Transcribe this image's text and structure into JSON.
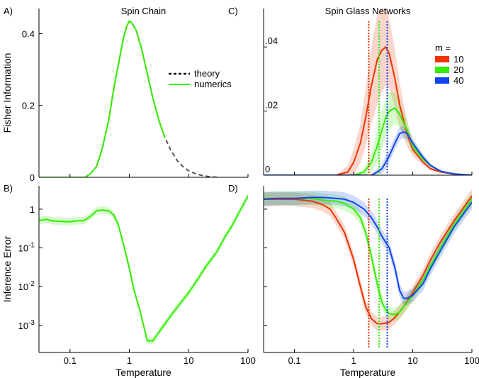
{
  "chart_data": [
    {
      "panel": "A)",
      "type": "line",
      "title": "Spin Chain",
      "ylabel": "Fisher Information",
      "xlabel": "",
      "xscale": "log",
      "xlim": [
        0.03,
        100
      ],
      "ylim": [
        0,
        0.47
      ],
      "xticks": [],
      "yticks": [
        {
          "v": 0,
          "label": "0"
        },
        {
          "v": 0.2,
          "label": "0.2"
        },
        {
          "v": 0.4,
          "label": "0.4"
        }
      ],
      "legend": {
        "placement": "center-right",
        "entries": [
          {
            "label": "theory",
            "style": "dashed",
            "color": "#000000"
          },
          {
            "label": "numerics",
            "style": "solid",
            "color": "#33ee00"
          }
        ]
      },
      "series": [
        {
          "name": "theory",
          "color": "#555555",
          "dashed": true,
          "x": [
            0.18,
            0.22,
            0.28,
            0.35,
            0.45,
            0.55,
            0.7,
            0.8,
            0.9,
            1.0,
            1.1,
            1.3,
            1.6,
            2.0,
            2.5,
            3.2,
            4.0,
            5.0,
            6.5,
            8.0,
            10,
            13,
            16,
            20,
            25,
            30
          ],
          "y": [
            0.0,
            0.01,
            0.03,
            0.08,
            0.16,
            0.25,
            0.34,
            0.39,
            0.42,
            0.435,
            0.43,
            0.41,
            0.36,
            0.29,
            0.22,
            0.155,
            0.11,
            0.075,
            0.045,
            0.03,
            0.018,
            0.01,
            0.006,
            0.003,
            0.001,
            0.0
          ]
        },
        {
          "name": "numerics",
          "color": "#33ee00",
          "dashed": false,
          "x": [
            0.03,
            0.18,
            0.22,
            0.28,
            0.35,
            0.45,
            0.55,
            0.7,
            0.8,
            0.9,
            1.0,
            1.1,
            1.3,
            1.6,
            2.0,
            2.5,
            3.2,
            4.0
          ],
          "y": [
            0.0,
            0.0,
            0.01,
            0.03,
            0.08,
            0.16,
            0.25,
            0.34,
            0.39,
            0.42,
            0.435,
            0.43,
            0.41,
            0.36,
            0.29,
            0.22,
            0.155,
            0.11
          ]
        }
      ]
    },
    {
      "panel": "B)",
      "type": "line",
      "title": "",
      "ylabel": "Inference Error",
      "xlabel": "Temperature",
      "xscale": "log",
      "yscale": "log",
      "xlim": [
        0.03,
        100
      ],
      "ylim": [
        0.0002,
        4
      ],
      "xticks": [
        {
          "v": 0.1,
          "label": "0.1"
        },
        {
          "v": 1,
          "label": "1"
        },
        {
          "v": 10,
          "label": "10"
        },
        {
          "v": 100,
          "label": "100"
        }
      ],
      "yticks": [
        {
          "v": 1,
          "label": "1",
          "base": "1",
          "exp": ""
        },
        {
          "v": 0.1,
          "label": "10-1",
          "base": "10",
          "exp": "-1"
        },
        {
          "v": 0.01,
          "label": "10-2",
          "base": "10",
          "exp": "-2"
        },
        {
          "v": 0.001,
          "label": "10-3",
          "base": "10",
          "exp": "-3"
        }
      ],
      "series": [
        {
          "name": "numerics",
          "color": "#33ee00",
          "band": 1.25,
          "x": [
            0.03,
            0.04,
            0.05,
            0.07,
            0.1,
            0.13,
            0.17,
            0.22,
            0.28,
            0.35,
            0.45,
            0.55,
            0.65,
            0.8,
            1.0,
            1.2,
            1.5,
            1.8,
            2.0,
            2.5,
            3.0,
            4.0,
            5.0,
            7.0,
            10,
            14,
            20,
            30,
            40,
            55,
            70,
            100
          ],
          "y": [
            0.5,
            0.55,
            0.5,
            0.48,
            0.47,
            0.5,
            0.5,
            0.65,
            0.9,
            0.95,
            0.9,
            0.7,
            0.4,
            0.12,
            0.03,
            0.008,
            0.0025,
            0.0008,
            0.0004,
            0.0004,
            0.0006,
            0.0011,
            0.0018,
            0.0035,
            0.007,
            0.015,
            0.035,
            0.08,
            0.18,
            0.4,
            0.8,
            2.2
          ]
        }
      ]
    },
    {
      "panel": "C)",
      "type": "line",
      "title": "Spin Glass Networks",
      "ylabel": "",
      "xlabel": "",
      "xscale": "log",
      "xlim": [
        0.03,
        100
      ],
      "ylim": [
        0,
        0.052
      ],
      "xticks": [],
      "yticks": [
        {
          "v": 0,
          "label": "0"
        },
        {
          "v": 0.02,
          "label": ".02"
        },
        {
          "v": 0.04,
          "label": ".04"
        }
      ],
      "legend": {
        "title": "m =",
        "placement": "top-right",
        "entries": [
          {
            "label": "10",
            "color": "#ee3300"
          },
          {
            "label": "20",
            "color": "#33ee00"
          },
          {
            "label": "40",
            "color": "#1144ee"
          }
        ]
      },
      "vlines": [
        {
          "x": 1.8,
          "color": "#ee3300"
        },
        {
          "x": 2.7,
          "color": "#33ee00"
        },
        {
          "x": 3.7,
          "color": "#1144ee"
        }
      ],
      "series": [
        {
          "name": "10",
          "color": "#ee3300",
          "x": [
            0.03,
            0.5,
            0.8,
            1.0,
            1.3,
            1.6,
            2.0,
            2.5,
            3.0,
            3.5,
            4.0,
            5.0,
            6.0,
            8.0,
            10,
            15,
            20,
            30,
            50,
            100
          ],
          "y": [
            0.0,
            0.0,
            0.001,
            0.004,
            0.01,
            0.018,
            0.028,
            0.036,
            0.039,
            0.04,
            0.038,
            0.03,
            0.022,
            0.013,
            0.008,
            0.004,
            0.002,
            0.001,
            0.0003,
            0.0
          ],
          "spread": [
            0,
            0,
            0.002,
            0.004,
            0.006,
            0.009,
            0.012,
            0.014,
            0.013,
            0.012,
            0.011,
            0.009,
            0.007,
            0.004,
            0.002,
            0.001,
            0.0005,
            0.0002,
            0,
            0
          ]
        },
        {
          "name": "20",
          "color": "#33ee00",
          "x": [
            0.03,
            1.0,
            1.5,
            2.0,
            2.5,
            3.0,
            3.5,
            4.0,
            5.0,
            6.0,
            8.0,
            10,
            15,
            20,
            30,
            50,
            100
          ],
          "y": [
            0.0,
            0.0,
            0.001,
            0.004,
            0.009,
            0.014,
            0.018,
            0.02,
            0.021,
            0.019,
            0.014,
            0.009,
            0.005,
            0.003,
            0.0012,
            0.0004,
            0.0
          ],
          "spread": [
            0,
            0,
            0.001,
            0.003,
            0.005,
            0.006,
            0.006,
            0.006,
            0.005,
            0.004,
            0.003,
            0.002,
            0.001,
            0.0005,
            0.0002,
            0,
            0
          ]
        },
        {
          "name": "40",
          "color": "#1144ee",
          "x": [
            0.03,
            2.0,
            2.5,
            3.0,
            3.5,
            4.0,
            5.0,
            6.0,
            7.0,
            8.0,
            10,
            15,
            20,
            30,
            50,
            100
          ],
          "y": [
            0.0,
            0.0,
            0.001,
            0.002,
            0.004,
            0.006,
            0.01,
            0.013,
            0.0135,
            0.013,
            0.01,
            0.0055,
            0.003,
            0.0012,
            0.0004,
            0.0
          ],
          "spread": [
            0,
            0,
            0.001,
            0.0015,
            0.002,
            0.002,
            0.002,
            0.002,
            0.002,
            0.002,
            0.0015,
            0.001,
            0.0005,
            0.0002,
            0,
            0
          ]
        }
      ]
    },
    {
      "panel": "D)",
      "type": "line",
      "title": "",
      "ylabel": "",
      "xlabel": "Temperature",
      "xscale": "log",
      "yscale": "log",
      "xlim": [
        0.03,
        100
      ],
      "ylim": [
        0.0002,
        4
      ],
      "xticks": [
        {
          "v": 0.1,
          "label": "0.1"
        },
        {
          "v": 1,
          "label": "1"
        },
        {
          "v": 10,
          "label": "10"
        },
        {
          "v": 100,
          "label": "100"
        }
      ],
      "yticks": [],
      "vlines": [
        {
          "x": 1.8,
          "color": "#ee3300"
        },
        {
          "x": 2.7,
          "color": "#33ee00"
        },
        {
          "x": 3.7,
          "color": "#1144ee"
        }
      ],
      "series": [
        {
          "name": "10",
          "color": "#ee3300",
          "band": 1.5,
          "x": [
            0.03,
            0.05,
            0.1,
            0.2,
            0.3,
            0.4,
            0.5,
            0.7,
            1.0,
            1.3,
            1.6,
            2.0,
            2.5,
            3.0,
            4.0,
            5.0,
            7.0,
            10,
            15,
            20,
            30,
            50,
            100
          ],
          "y": [
            1.8,
            1.8,
            1.8,
            1.6,
            1.3,
            1.0,
            0.6,
            0.25,
            0.05,
            0.01,
            0.003,
            0.0015,
            0.0011,
            0.0011,
            0.0012,
            0.0016,
            0.003,
            0.007,
            0.02,
            0.05,
            0.15,
            0.5,
            2.2
          ]
        },
        {
          "name": "20",
          "color": "#33ee00",
          "band": 1.5,
          "x": [
            0.03,
            0.05,
            0.1,
            0.2,
            0.3,
            0.5,
            0.7,
            1.0,
            1.3,
            1.6,
            2.0,
            2.5,
            3.0,
            3.5,
            4.0,
            5.0,
            6.0,
            7.0,
            10,
            15,
            20,
            30,
            50,
            100
          ],
          "y": [
            1.9,
            1.9,
            1.9,
            1.9,
            1.7,
            1.6,
            1.4,
            1.0,
            0.6,
            0.25,
            0.06,
            0.012,
            0.004,
            0.0025,
            0.002,
            0.0019,
            0.0022,
            0.003,
            0.006,
            0.015,
            0.035,
            0.11,
            0.4,
            1.8
          ]
        },
        {
          "name": "40",
          "color": "#1144ee",
          "band": 1.5,
          "x": [
            0.03,
            0.05,
            0.1,
            0.2,
            0.3,
            0.5,
            0.7,
            1.0,
            1.5,
            2.0,
            2.5,
            3.0,
            4.0,
            5.0,
            6.0,
            7.0,
            8.0,
            10,
            15,
            20,
            30,
            50,
            100
          ],
          "y": [
            1.8,
            1.9,
            1.9,
            2.0,
            2.0,
            1.9,
            1.8,
            1.5,
            1.0,
            0.6,
            0.35,
            0.2,
            0.1,
            0.03,
            0.008,
            0.005,
            0.005,
            0.006,
            0.012,
            0.03,
            0.09,
            0.35,
            1.5
          ]
        }
      ]
    }
  ]
}
